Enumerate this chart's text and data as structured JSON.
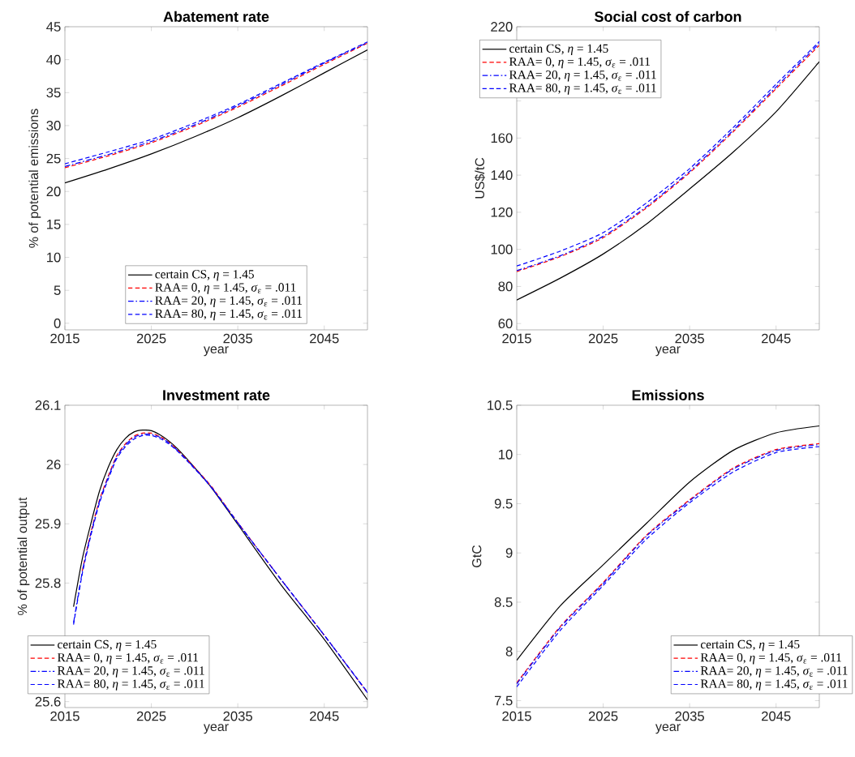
{
  "chart_data": [
    {
      "type": "line",
      "title": "Abatement rate",
      "xlabel": "year",
      "ylabel": "% of potential emissions",
      "xlim": [
        2015,
        2050
      ],
      "xticks": [
        2015,
        2025,
        2035,
        2045
      ],
      "ylim": [
        -1,
        45
      ],
      "yticks": [
        0,
        5,
        10,
        15,
        20,
        25,
        30,
        35,
        40,
        45
      ],
      "legend": "bottom",
      "x": [
        2015,
        2020,
        2025,
        2030,
        2035,
        2040,
        2045,
        2050
      ],
      "series": [
        {
          "name": "certain CS, *η* = 1.45",
          "color": "#000000",
          "line_style": "solid",
          "values": [
            21.3,
            23.4,
            25.7,
            28.3,
            31.2,
            34.5,
            38.0,
            41.5
          ]
        },
        {
          "name": "RAA= 0, *η* = 1.45, *σ*$_{ε}$ = .011",
          "color": "#ff0000",
          "line_style": "dashed",
          "values": [
            23.6,
            25.4,
            27.4,
            29.9,
            32.8,
            36.0,
            39.3,
            42.5
          ]
        },
        {
          "name": "RAA= 20, *η* = 1.45, *σ*$_{ε}$ = .011",
          "color": "#0000ff",
          "line_style": "dashdot",
          "values": [
            23.8,
            25.6,
            27.6,
            30.1,
            33.0,
            36.2,
            39.5,
            42.6
          ]
        },
        {
          "name": "RAA= 80, *η* = 1.45, *σ*$_{ε}$ = .011",
          "color": "#0000ff",
          "line_style": "dashed",
          "values": [
            24.2,
            26.0,
            27.9,
            30.4,
            33.2,
            36.4,
            39.6,
            42.7
          ]
        }
      ]
    },
    {
      "type": "line",
      "title": "Social cost of carbon",
      "xlabel": "year",
      "ylabel": "US$/tC",
      "xlim": [
        2015,
        2050
      ],
      "xticks": [
        2015,
        2025,
        2035,
        2045
      ],
      "ylim": [
        56.6,
        220
      ],
      "yticks": [
        60,
        80,
        100,
        120,
        140,
        160,
        {
          "value": 180,
          "label": null
        },
        {
          "value": 200,
          "label": null
        },
        220
      ],
      "legend": "top left",
      "x": [
        2015,
        2020,
        2025,
        2030,
        2035,
        2040,
        2045,
        2050
      ],
      "series": [
        {
          "name": "certain CS, *η* = 1.45",
          "color": "#000000",
          "line_style": "solid",
          "values": [
            72.7,
            84.4,
            97.5,
            113.6,
            132.6,
            152.3,
            174.2,
            201.2
          ]
        },
        {
          "name": "RAA= 0, *η* = 1.45, *σ*$_{ε}$ = .011",
          "color": "#ff0000",
          "line_style": "dashed",
          "values": [
            88,
            96,
            106.3,
            122.3,
            141.3,
            163.2,
            186.6,
            210
          ]
        },
        {
          "name": "RAA= 20, *η* = 1.45, *σ*$_{ε}$ = .011",
          "color": "#0000ff",
          "line_style": "dashdot",
          "values": [
            88.5,
            96.5,
            107,
            123,
            142,
            164,
            187.5,
            211
          ]
        },
        {
          "name": "RAA= 80, *η* = 1.45, *σ*$_{ε}$ = .011",
          "color": "#0000ff",
          "line_style": "dashed",
          "values": [
            91,
            99,
            109,
            125,
            143.5,
            165.5,
            189,
            212
          ]
        }
      ]
    },
    {
      "type": "line",
      "title": "Investment rate",
      "xlabel": "year",
      "ylabel": "% of potential output",
      "xlim": [
        2015,
        2050
      ],
      "xticks": [
        2015,
        2025,
        2035,
        2045
      ],
      "ylim": [
        25.59,
        26.1
      ],
      "yticks": [
        25.6,
        {
          "value": 25.7,
          "label": null
        },
        25.8,
        25.9,
        26,
        26.1
      ],
      "legend": "bottom left",
      "x": [
        2016,
        2017,
        2018,
        2019,
        2020,
        2021,
        2022,
        2023,
        2024,
        2025,
        2026,
        2027,
        2028,
        2030,
        2032,
        2035,
        2040,
        2045,
        2050
      ],
      "series": [
        {
          "name": "certain CS, *η* = 1.45",
          "color": "#000000",
          "line_style": "solid",
          "values": [
            25.76,
            25.84,
            25.9,
            25.955,
            25.995,
            26.025,
            26.044,
            26.055,
            26.058,
            26.057,
            26.05,
            26.04,
            26.027,
            25.995,
            25.96,
            25.899,
            25.797,
            25.705,
            25.603
          ]
        },
        {
          "name": "RAA= 0, *η* = 1.45, *σ*$_{ε}$ = .011",
          "color": "#ff0000",
          "line_style": "dashed",
          "values": [
            null,
            25.82,
            25.885,
            25.94,
            25.98,
            26.015,
            26.035,
            26.048,
            26.053,
            26.053,
            26.047,
            26.038,
            26.025,
            25.995,
            25.962,
            25.902,
            25.806,
            25.712,
            25.615
          ]
        },
        {
          "name": "RAA= 20, *η* = 1.45, *σ*$_{ε}$ = .011",
          "color": "#0000ff",
          "line_style": "dashdot",
          "values": [
            25.733,
            25.818,
            25.883,
            25.938,
            25.978,
            26.013,
            26.033,
            26.046,
            26.051,
            26.051,
            26.046,
            26.037,
            26.024,
            25.994,
            25.961,
            25.902,
            25.806,
            25.712,
            25.615
          ]
        },
        {
          "name": "RAA= 80, *η* = 1.45, *σ*$_{ε}$ = .011",
          "color": "#0000ff",
          "line_style": "dashed",
          "values": [
            25.73,
            25.815,
            25.88,
            25.935,
            25.975,
            26.01,
            26.03,
            26.043,
            26.049,
            26.049,
            26.044,
            26.035,
            26.023,
            25.993,
            25.96,
            25.901,
            25.806,
            25.712,
            25.616
          ]
        }
      ]
    },
    {
      "type": "line",
      "title": "Emissions",
      "xlabel": "year",
      "ylabel": "GtC",
      "xlim": [
        2015,
        2050
      ],
      "xticks": [
        2015,
        2025,
        2035,
        2045
      ],
      "ylim": [
        7.43,
        10.5
      ],
      "yticks": [
        7.5,
        8,
        8.5,
        9,
        9.5,
        10,
        10.5
      ],
      "legend": "bottom right",
      "x": [
        2015,
        2020,
        2025,
        2030,
        2035,
        2040,
        2045,
        2050
      ],
      "series": [
        {
          "name": "certain CS, *η* = 1.45",
          "color": "#000000",
          "line_style": "solid",
          "values": [
            7.91,
            8.46,
            8.88,
            9.3,
            9.72,
            10.04,
            10.22,
            10.29
          ]
        },
        {
          "name": "RAA= 0, *η* = 1.45, *σ*$_{ε}$ = .011",
          "color": "#ff0000",
          "line_style": "dashed",
          "values": [
            7.68,
            8.25,
            8.7,
            9.18,
            9.54,
            9.86,
            10.05,
            10.11
          ]
        },
        {
          "name": "RAA= 20, *η* = 1.45, *σ*$_{ε}$ = .011",
          "color": "#0000ff",
          "line_style": "dashdot",
          "values": [
            7.67,
            8.24,
            8.69,
            9.17,
            9.53,
            9.85,
            10.04,
            10.1
          ]
        },
        {
          "name": "RAA= 80, *η* = 1.45, *σ*$_{ε}$ = .011",
          "color": "#0000ff",
          "line_style": "dashed",
          "values": [
            7.64,
            8.21,
            8.67,
            9.14,
            9.51,
            9.82,
            10.02,
            10.08
          ]
        }
      ]
    }
  ]
}
